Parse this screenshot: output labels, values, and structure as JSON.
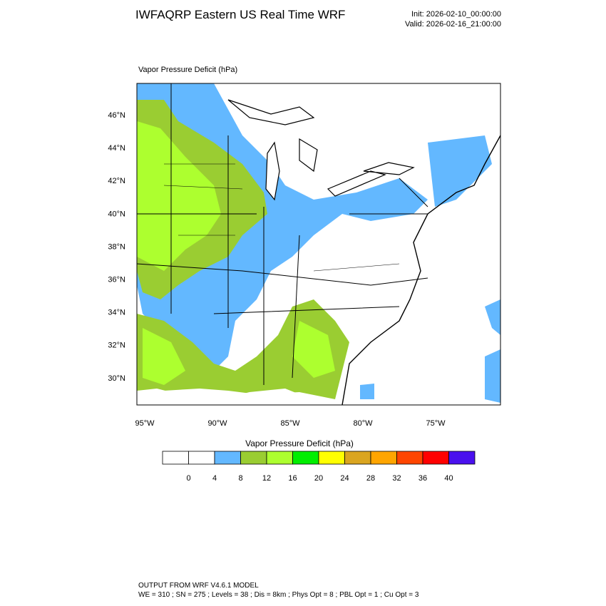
{
  "header": {
    "title": "IWFAQRP Eastern US Real Time WRF",
    "init": "Init: 2026-02-10_00:00:00",
    "valid": "Valid: 2026-02-16_21:00:00"
  },
  "map": {
    "title": "Vapor Pressure Deficit   (hPa)",
    "lat_labels": [
      "46°N",
      "44°N",
      "42°N",
      "40°N",
      "38°N",
      "36°N",
      "34°N",
      "32°N",
      "30°N"
    ],
    "lon_labels": [
      "95°W",
      "90°W",
      "85°W",
      "80°W",
      "75°W"
    ]
  },
  "colorbar": {
    "title": "Vapor Pressure Deficit   (hPa)",
    "colors": [
      "#ffffff",
      "#ffffff",
      "#63b8ff",
      "#9acd32",
      "#adff2f",
      "#00ee00",
      "#ffff00",
      "#daa520",
      "#ffa500",
      "#ff4500",
      "#ff0000",
      "#4a10ee"
    ],
    "labels": [
      0,
      4,
      8,
      12,
      16,
      20,
      24,
      28,
      32,
      36,
      40
    ]
  },
  "footer": {
    "line1": "OUTPUT FROM WRF V4.6.1 MODEL",
    "line2": "WE = 310 ; SN = 275 ; Levels = 38 ; Dis = 8km ; Phys Opt = 8 ; PBL Opt = 1 ; Cu Opt = 3"
  }
}
